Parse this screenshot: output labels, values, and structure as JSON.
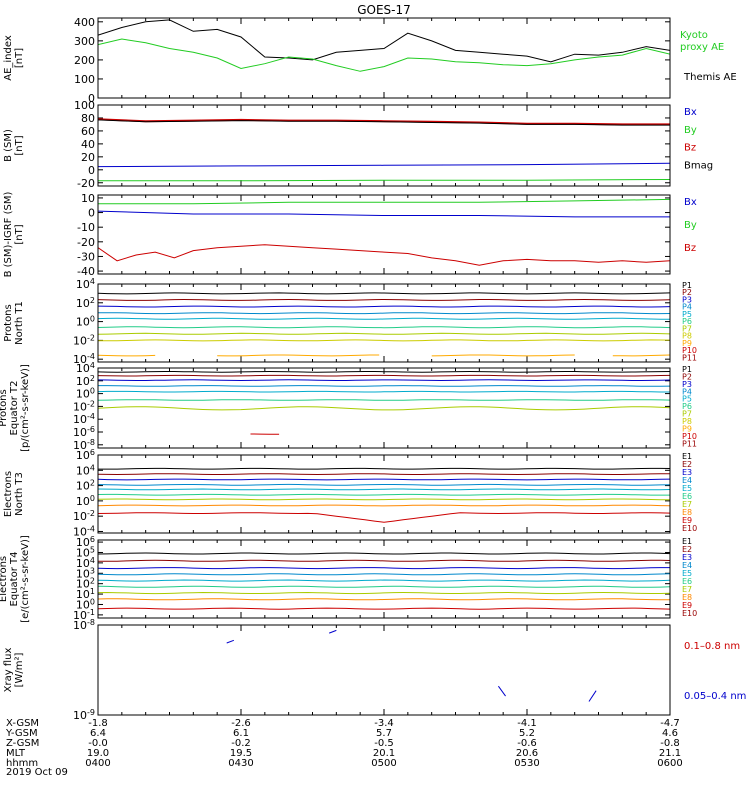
{
  "title": "GOES-17",
  "date_label": "2019 Oct 09",
  "colors": {
    "black": "#000000",
    "blue": "#0000cc",
    "green": "#22cc22",
    "red": "#cc0000",
    "darkred": "#8b0000",
    "cyan": "#00aacc",
    "yellow": "#cccc00",
    "orange": "#ff8800"
  },
  "x_axis": {
    "start_hhmm": "0400",
    "end_hhmm": "0600",
    "row_labels": [
      "X-GSM",
      "Y-GSM",
      "Z-GSM",
      "MLT",
      "hhmm"
    ],
    "ticks": [
      {
        "x_gsm": "-1.8",
        "y_gsm": "6.4",
        "z_gsm": "-0.0",
        "mlt": "19.0",
        "hhmm": "0400"
      },
      {
        "x_gsm": "-2.6",
        "y_gsm": "6.1",
        "z_gsm": "-0.2",
        "mlt": "19.5",
        "hhmm": "0430"
      },
      {
        "x_gsm": "-3.4",
        "y_gsm": "5.7",
        "z_gsm": "-0.5",
        "mlt": "20.1",
        "hhmm": "0500"
      },
      {
        "x_gsm": "-4.1",
        "y_gsm": "5.2",
        "z_gsm": "-0.6",
        "mlt": "20.6",
        "hhmm": "0530"
      },
      {
        "x_gsm": "-4.7",
        "y_gsm": "4.6",
        "z_gsm": "-0.8",
        "mlt": "21.1",
        "hhmm": "0600"
      }
    ]
  },
  "chart_data": [
    {
      "type": "line",
      "id": "ae",
      "ylabel": [
        "AE_index",
        "[nT]"
      ],
      "ylim": [
        0,
        420
      ],
      "yticks": [
        "0",
        "100",
        "200",
        "300",
        "400"
      ],
      "ytick_values": [
        0,
        100,
        200,
        300,
        400
      ],
      "legend": [
        {
          "name": "Kyoto proxy AE",
          "lines": [
            "Kyoto",
            "proxy AE"
          ],
          "color": "#22cc22"
        },
        {
          "name": "Themis AE",
          "lines": [
            "Themis AE"
          ],
          "color": "#000000"
        }
      ],
      "series": [
        {
          "name": "Themis AE",
          "color": "#000000",
          "minutes": [
            0,
            5,
            10,
            15,
            20,
            25,
            30,
            35,
            40,
            45,
            50,
            55,
            60,
            65,
            70,
            75,
            80,
            85,
            90,
            95,
            100,
            105,
            110,
            115,
            120
          ],
          "values": [
            330,
            370,
            400,
            410,
            350,
            360,
            320,
            215,
            210,
            200,
            240,
            250,
            260,
            340,
            300,
            250,
            240,
            230,
            220,
            190,
            230,
            225,
            240,
            270,
            250
          ]
        },
        {
          "name": "Kyoto proxy AE",
          "color": "#22cc22",
          "minutes": [
            0,
            5,
            10,
            15,
            20,
            25,
            30,
            35,
            40,
            45,
            50,
            55,
            60,
            65,
            70,
            75,
            80,
            85,
            90,
            95,
            100,
            105,
            110,
            115,
            120
          ],
          "values": [
            280,
            310,
            290,
            260,
            240,
            210,
            155,
            180,
            215,
            205,
            170,
            140,
            165,
            210,
            205,
            190,
            185,
            175,
            170,
            180,
            200,
            215,
            225,
            260,
            230
          ]
        }
      ]
    },
    {
      "type": "line",
      "id": "b_sm",
      "ylabel": [
        "B (SM)",
        "[nT]"
      ],
      "ylim": [
        -25,
        100
      ],
      "yticks": [
        "-20",
        "0",
        "20",
        "40",
        "60",
        "80",
        "100"
      ],
      "ytick_values": [
        -20,
        0,
        20,
        40,
        60,
        80,
        100
      ],
      "legend": [
        {
          "name": "Bx",
          "color": "#0000cc"
        },
        {
          "name": "By",
          "color": "#22cc22"
        },
        {
          "name": "Bz",
          "color": "#cc0000"
        },
        {
          "name": "Bmag",
          "color": "#000000"
        }
      ],
      "series": [
        {
          "name": "Bx",
          "color": "#0000cc",
          "minutes": [
            0,
            30,
            60,
            90,
            120
          ],
          "values": [
            5,
            6,
            7,
            8,
            10
          ]
        },
        {
          "name": "By",
          "color": "#22cc22",
          "minutes": [
            0,
            30,
            60,
            90,
            120
          ],
          "values": [
            -17,
            -17,
            -16,
            -16,
            -15
          ]
        },
        {
          "name": "Bz",
          "color": "#cc0000",
          "minutes": [
            0,
            10,
            20,
            30,
            40,
            50,
            60,
            70,
            80,
            90,
            100,
            110,
            120
          ],
          "values": [
            78,
            75,
            76,
            77,
            76,
            76,
            75,
            74,
            73,
            71,
            71,
            70,
            70
          ]
        },
        {
          "name": "Bmag",
          "color": "#000000",
          "minutes": [
            0,
            10,
            20,
            30,
            40,
            50,
            60,
            70,
            80,
            90,
            100,
            110,
            120
          ],
          "values": [
            77,
            74,
            75,
            76,
            75,
            75,
            74,
            73,
            72,
            70,
            70,
            69,
            69
          ]
        }
      ]
    },
    {
      "type": "line",
      "id": "b_igrf",
      "ylabel": [
        "B (SM)-IGRF (SM)",
        "[nT]"
      ],
      "ylim": [
        -42,
        12
      ],
      "yticks": [
        "-40",
        "-30",
        "-20",
        "-10",
        "0",
        "10"
      ],
      "ytick_values": [
        -40,
        -30,
        -20,
        -10,
        0,
        10
      ],
      "legend": [
        {
          "name": "Bx",
          "color": "#0000cc"
        },
        {
          "name": "By",
          "color": "#22cc22"
        },
        {
          "name": "Bz",
          "color": "#cc0000"
        }
      ],
      "series": [
        {
          "name": "By",
          "color": "#22cc22",
          "minutes": [
            0,
            20,
            40,
            60,
            80,
            100,
            120
          ],
          "values": [
            6,
            6,
            7,
            7,
            7,
            8,
            9
          ]
        },
        {
          "name": "Bx",
          "color": "#0000cc",
          "minutes": [
            0,
            20,
            40,
            60,
            80,
            100,
            120
          ],
          "values": [
            1,
            -1,
            -1,
            -2,
            -2,
            -3,
            -3
          ]
        },
        {
          "name": "Bz",
          "color": "#cc0000",
          "minutes": [
            0,
            4,
            8,
            12,
            16,
            20,
            25,
            30,
            35,
            40,
            45,
            50,
            55,
            60,
            65,
            70,
            75,
            80,
            85,
            90,
            95,
            100,
            105,
            110,
            115,
            120
          ],
          "values": [
            -24,
            -33,
            -29,
            -27,
            -31,
            -26,
            -24,
            -23,
            -22,
            -23,
            -24,
            -25,
            -26,
            -27,
            -28,
            -31,
            -33,
            -36,
            -33,
            -32,
            -33,
            -33,
            -34,
            -33,
            -34,
            -33
          ]
        }
      ]
    },
    {
      "type": "line",
      "id": "protons_t1",
      "log": true,
      "ylabel": [
        "Protons",
        "North T1"
      ],
      "ylim_exp": [
        -4.3,
        4
      ],
      "yticks": [
        "10^4",
        "10^2",
        "10^0",
        "10^-2",
        "10^-4"
      ],
      "ytick_exps": [
        4,
        2,
        0,
        -2,
        -4
      ],
      "series": [
        {
          "name": "P1",
          "color": "#000000",
          "exp": 3.0
        },
        {
          "name": "P2",
          "color": "#8b0000",
          "exp": 2.3
        },
        {
          "name": "P3",
          "color": "#0000cc",
          "exp": 1.6
        },
        {
          "name": "P4",
          "color": "#0088cc",
          "exp": 0.9
        },
        {
          "name": "P5",
          "color": "#00aacc",
          "exp": 0.3
        },
        {
          "name": "P6",
          "color": "#22cc88",
          "exp": -0.6
        },
        {
          "name": "P7",
          "color": "#aacc00",
          "exp": -1.3
        },
        {
          "name": "P8",
          "color": "#cccc00",
          "exp": -2.0
        },
        {
          "name": "P9",
          "color": "#ffaa00",
          "exp": -3.6,
          "segments": [
            [
              0,
              12
            ],
            [
              25,
              60
            ],
            [
              70,
              100
            ],
            [
              108,
              120
            ]
          ]
        },
        {
          "name": "P10",
          "color": "#cc0000"
        },
        {
          "name": "P11",
          "color": "#990000"
        }
      ]
    },
    {
      "type": "line",
      "id": "protons_t2",
      "log": true,
      "ylabel": [
        "Protons",
        "Equator T2",
        "[p/(cm²-s-sr-keV)]"
      ],
      "ylim_exp": [
        -8.5,
        4
      ],
      "yticks": [
        "10^4",
        "10^2",
        "10^0",
        "10^-2",
        "10^-4",
        "10^-6",
        "10^-8"
      ],
      "ytick_exps": [
        4,
        2,
        0,
        -2,
        -4,
        -6,
        -8
      ],
      "series": [
        {
          "name": "P1",
          "color": "#000000",
          "exp": 3.4
        },
        {
          "name": "P2",
          "color": "#8b0000",
          "exp": 2.8
        },
        {
          "name": "P3",
          "color": "#0000cc",
          "exp": 2.1
        },
        {
          "name": "P4",
          "color": "#0088cc",
          "exp": 1.2
        },
        {
          "name": "P5",
          "color": "#00aacc",
          "exp": 0.3
        },
        {
          "name": "P6",
          "color": "#22cc88",
          "exp": -1.0
        },
        {
          "name": "P7",
          "color": "#aacc00",
          "exp": -2.3,
          "wavy": true
        },
        {
          "name": "P8",
          "color": "#cccc00"
        },
        {
          "name": "P9",
          "color": "#ffaa00"
        },
        {
          "name": "P10",
          "color": "#cc0000",
          "exp": -6.3,
          "segments": [
            [
              32,
              38
            ]
          ]
        },
        {
          "name": "P11",
          "color": "#990000"
        }
      ]
    },
    {
      "type": "line",
      "id": "electrons_t3",
      "log": true,
      "ylabel": [
        "Electrons",
        "North T3"
      ],
      "ylim_exp": [
        -4.2,
        6
      ],
      "yticks": [
        "10^6",
        "10^4",
        "10^2",
        "10^0",
        "10^-2",
        "10^-4"
      ],
      "ytick_exps": [
        6,
        4,
        2,
        0,
        -2,
        -4
      ],
      "series": [
        {
          "name": "E1",
          "color": "#000000",
          "exp": 4.2
        },
        {
          "name": "E2",
          "color": "#8b0000",
          "exp": 3.5
        },
        {
          "name": "E3",
          "color": "#0000cc",
          "exp": 2.8
        },
        {
          "name": "E4",
          "color": "#0088cc",
          "exp": 2.1
        },
        {
          "name": "E5",
          "color": "#00aacc",
          "exp": 1.5
        },
        {
          "name": "E6",
          "color": "#22cc88",
          "exp": 0.8
        },
        {
          "name": "E7",
          "color": "#aacc00",
          "exp": 0.2
        },
        {
          "name": "E8",
          "color": "#ff8800",
          "exp": -0.6
        },
        {
          "name": "E9",
          "color": "#cc0000",
          "exp": -1.6,
          "dip": true
        },
        {
          "name": "E10",
          "color": "#990000"
        }
      ]
    },
    {
      "type": "line",
      "id": "electrons_t4",
      "log": true,
      "ylabel": [
        "Electrons",
        "Equator T4",
        "[e/(cm²-s-sr-keV)]"
      ],
      "ylim_exp": [
        -1.3,
        6.2
      ],
      "yticks": [
        "10^6",
        "10^5",
        "10^4",
        "10^3",
        "10^2",
        "10^1",
        "10^0",
        "10^-1"
      ],
      "ytick_exps": [
        6,
        5,
        4,
        3,
        2,
        1,
        0,
        -1
      ],
      "series": [
        {
          "name": "E1",
          "color": "#000000",
          "exp": 4.9
        },
        {
          "name": "E2",
          "color": "#8b0000",
          "exp": 4.2
        },
        {
          "name": "E3",
          "color": "#0000cc",
          "exp": 3.5
        },
        {
          "name": "E4",
          "color": "#0088cc",
          "exp": 2.9
        },
        {
          "name": "E5",
          "color": "#00aacc",
          "exp": 2.3
        },
        {
          "name": "E6",
          "color": "#22cc88",
          "exp": 1.7
        },
        {
          "name": "E7",
          "color": "#aacc00",
          "exp": 1.1
        },
        {
          "name": "E8",
          "color": "#ff8800",
          "exp": 0.5
        },
        {
          "name": "E9",
          "color": "#cc0000",
          "exp": -0.4
        },
        {
          "name": "E10",
          "color": "#990000"
        }
      ]
    },
    {
      "type": "line",
      "id": "xray",
      "log": true,
      "ylabel": [
        "Xray flux",
        "[W/m²]"
      ],
      "ylim_exp": [
        -9,
        -8
      ],
      "yticks": [
        "10^-8",
        "10^-9"
      ],
      "ytick_exps": [
        -8,
        -9
      ],
      "legend": [
        {
          "name": "0.1–0.8 nm",
          "color": "#cc0000"
        },
        {
          "name": "0.05–0.4 nm",
          "color": "#0000cc"
        }
      ],
      "series": [
        {
          "name": "0.05–0.4 nm",
          "color": "#0000cc",
          "fragments": [
            [
              [
                27,
                -8.2
              ],
              [
                28.5,
                -8.17
              ]
            ],
            [
              [
                48.5,
                -8.09
              ],
              [
                50,
                -8.06
              ]
            ],
            [
              [
                84,
                -8.68
              ],
              [
                85.5,
                -8.79
              ]
            ],
            [
              [
                103,
                -8.85
              ],
              [
                104.5,
                -8.73
              ]
            ]
          ]
        }
      ]
    }
  ]
}
